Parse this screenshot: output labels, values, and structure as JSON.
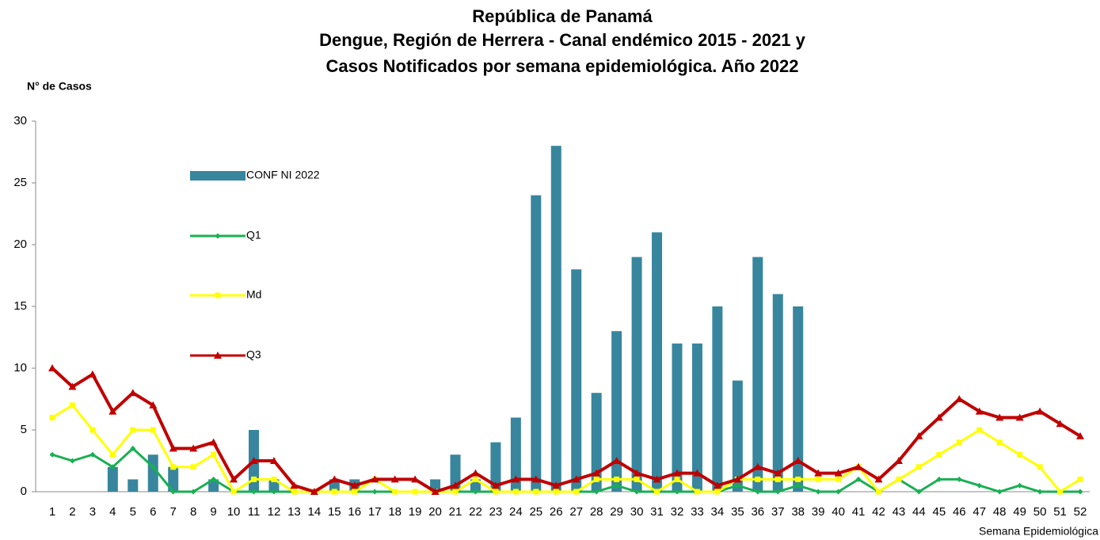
{
  "chart_data": {
    "type": "bar_line",
    "title": [
      "República de Panamá",
      "Dengue, Región de Herrera - Canal endémico 2015 - 2021 y",
      "Casos Notificados por semana epidemiológica. Año 2022"
    ],
    "y_label": "N° de Casos",
    "x_label": "Semana Epidemiológica",
    "categories": [
      "1",
      "2",
      "3",
      "4",
      "5",
      "6",
      "7",
      "8",
      "9",
      "10",
      "11",
      "12",
      "13",
      "14",
      "15",
      "16",
      "17",
      "18",
      "19",
      "20",
      "21",
      "22",
      "23",
      "24",
      "25",
      "26",
      "27",
      "28",
      "29",
      "30",
      "31",
      "32",
      "33",
      "34",
      "35",
      "36",
      "37",
      "38",
      "39",
      "40",
      "41",
      "42",
      "43",
      "44",
      "45",
      "46",
      "47",
      "48",
      "49",
      "50",
      "51",
      "52"
    ],
    "series": [
      {
        "name": "CONF NI 2022",
        "kind": "bar",
        "color": "#37869e",
        "values": [
          0,
          0,
          0,
          2,
          1,
          3,
          2,
          0,
          1,
          0,
          5,
          1,
          0,
          0,
          1,
          1,
          0,
          0,
          0,
          1,
          3,
          1,
          4,
          6,
          24,
          28,
          18,
          8,
          13,
          19,
          21,
          12,
          12,
          15,
          9,
          19,
          16,
          15,
          0,
          0,
          0,
          0,
          0,
          0,
          0,
          0,
          0,
          0,
          0,
          0,
          0,
          0
        ]
      },
      {
        "name": "Q1",
        "kind": "line",
        "marker": "diamond",
        "color": "#1aaf54",
        "values": [
          3,
          2.5,
          3,
          2,
          3.5,
          2,
          0,
          0,
          1,
          0,
          0,
          0,
          0,
          0,
          0,
          0,
          0,
          0,
          0,
          0,
          0,
          0,
          0,
          0,
          0,
          0,
          0,
          0,
          0.5,
          0,
          0,
          0,
          0,
          0,
          0.5,
          0,
          0,
          0.5,
          0,
          0,
          1,
          0,
          1,
          0,
          1,
          1,
          0.5,
          0,
          0.5,
          0,
          0,
          0
        ]
      },
      {
        "name": "Md",
        "kind": "line",
        "marker": "square",
        "color": "#ffff00",
        "values": [
          6,
          7,
          5,
          3,
          5,
          5,
          2,
          2,
          3,
          0,
          1,
          1,
          0,
          0,
          0,
          0,
          1,
          0,
          0,
          0,
          0,
          1,
          0,
          0,
          0,
          0,
          0,
          1,
          1,
          1,
          0,
          1,
          0,
          0,
          1,
          1,
          1,
          1,
          1,
          1,
          2,
          0,
          1,
          2,
          3,
          4,
          5,
          4,
          3,
          2,
          0,
          1
        ]
      },
      {
        "name": "Q3",
        "kind": "line",
        "marker": "triangle",
        "color": "#c00000",
        "values": [
          10,
          8.5,
          9.5,
          6.5,
          8,
          7,
          3.5,
          3.5,
          4,
          1,
          2.5,
          2.5,
          0.5,
          0,
          1,
          0.5,
          1,
          1,
          1,
          0,
          0.5,
          1.5,
          0.5,
          1,
          1,
          0.5,
          1,
          1.5,
          2.5,
          1.5,
          1,
          1.5,
          1.5,
          0.5,
          1,
          2,
          1.5,
          2.5,
          1.5,
          1.5,
          2,
          1,
          2.5,
          4.5,
          6,
          7.5,
          6.5,
          6,
          6,
          6.5,
          5.5,
          4.5
        ]
      }
    ],
    "ylim": [
      0,
      30
    ],
    "yticks": [
      0,
      5,
      10,
      15,
      20,
      25,
      30
    ],
    "grid": false
  }
}
